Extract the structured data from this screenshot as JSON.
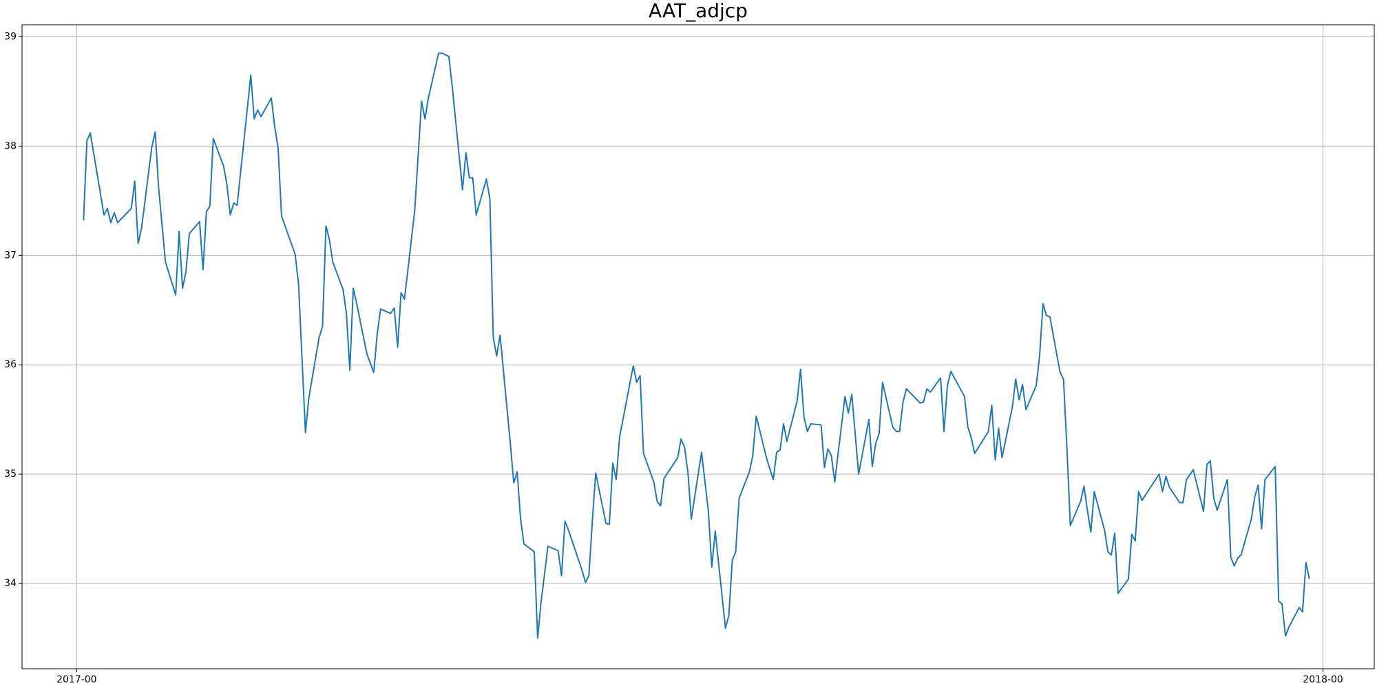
{
  "chart_data": {
    "type": "line",
    "title": "AAT_adjcp",
    "x": [
      2,
      3,
      4,
      8,
      9,
      10,
      11,
      12,
      16,
      17,
      18,
      19,
      22,
      23,
      24,
      26,
      29,
      30,
      31,
      32,
      33,
      36,
      37,
      38,
      39,
      40,
      43,
      44,
      45,
      46,
      47,
      51,
      52,
      53,
      54,
      57,
      58,
      59,
      60,
      64,
      65,
      67,
      68,
      71,
      72,
      73,
      74,
      75,
      78,
      79,
      80,
      81,
      82,
      85,
      87,
      88,
      89,
      92,
      93,
      94,
      95,
      96,
      99,
      101,
      102,
      103,
      106,
      107,
      109,
      110,
      113,
      114,
      115,
      116,
      117,
      120,
      121,
      122,
      123,
      124,
      127,
      128,
      129,
      130,
      131,
      134,
      135,
      136,
      137,
      138,
      141,
      142,
      143,
      144,
      148,
      149,
      150,
      151,
      152,
      155,
      156,
      157,
      158,
      159,
      163,
      164,
      165,
      166,
      169,
      170,
      171,
      172,
      176,
      177,
      178,
      179,
      180,
      183,
      185,
      186,
      187,
      190,
      191,
      192,
      193,
      194,
      197,
      198,
      199,
      202,
      204,
      205,
      206,
      207,
      208,
      211,
      212,
      213,
      214,
      215,
      218,
      219,
      220,
      221,
      222,
      225,
      226,
      227,
      229,
      232,
      233,
      234,
      235,
      236,
      239,
      240,
      241,
      242,
      243,
      247,
      248,
      249,
      250,
      253,
      254,
      255,
      256,
      260,
      261,
      262,
      263,
      267,
      268,
      269,
      270,
      271,
      274,
      275,
      276,
      277,
      278,
      281,
      282,
      283,
      284,
      285,
      288,
      289,
      290,
      291,
      294,
      295,
      296,
      297,
      298,
      301,
      302,
      303,
      304,
      305,
      308,
      309,
      310,
      311,
      312,
      317,
      318,
      319,
      320,
      323,
      324,
      325,
      327,
      330,
      331,
      332,
      333,
      334,
      337,
      338,
      339,
      340,
      341,
      344,
      345,
      346,
      347,
      348,
      351,
      352,
      353,
      354,
      355,
      358,
      359,
      360,
      361
    ],
    "series": [
      {
        "color": "#1f77b4",
        "values": [
          37.32,
          38.05,
          38.12,
          37.37,
          37.43,
          37.3,
          37.39,
          37.3,
          37.43,
          37.68,
          37.11,
          37.25,
          37.99,
          38.13,
          37.62,
          36.94,
          36.64,
          37.22,
          36.7,
          36.85,
          37.2,
          37.31,
          36.87,
          37.4,
          37.45,
          38.07,
          37.82,
          37.65,
          37.37,
          37.48,
          37.46,
          38.65,
          38.25,
          38.33,
          38.27,
          38.44,
          38.18,
          37.98,
          37.36,
          37.01,
          36.73,
          35.38,
          35.7,
          36.25,
          36.35,
          37.27,
          37.15,
          36.94,
          36.69,
          36.47,
          35.95,
          36.7,
          36.56,
          36.1,
          35.93,
          36.28,
          36.51,
          36.47,
          36.52,
          36.16,
          36.66,
          36.6,
          37.41,
          38.41,
          38.25,
          38.44,
          38.85,
          38.85,
          38.82,
          38.54,
          37.6,
          37.94,
          37.71,
          37.71,
          37.37,
          37.7,
          37.52,
          36.25,
          36.08,
          36.27,
          35.28,
          34.92,
          35.02,
          34.59,
          34.36,
          34.29,
          33.5,
          33.83,
          34.08,
          34.34,
          34.3,
          34.07,
          34.57,
          34.49,
          34.12,
          34.01,
          34.07,
          34.56,
          35.01,
          34.55,
          34.54,
          35.1,
          34.95,
          35.34,
          35.99,
          35.84,
          35.9,
          35.19,
          34.93,
          34.75,
          34.71,
          34.96,
          35.15,
          35.32,
          35.25,
          35.02,
          34.59,
          35.2,
          34.66,
          34.15,
          34.48,
          33.59,
          33.71,
          34.21,
          34.29,
          34.78,
          35.02,
          35.17,
          35.53,
          35.15,
          34.95,
          35.2,
          35.22,
          35.46,
          35.3,
          35.67,
          35.96,
          35.52,
          35.39,
          35.46,
          35.45,
          35.06,
          35.23,
          35.17,
          34.93,
          35.71,
          35.56,
          35.73,
          35.0,
          35.5,
          35.07,
          35.28,
          35.37,
          35.84,
          35.43,
          35.39,
          35.39,
          35.66,
          35.78,
          35.65,
          35.66,
          35.78,
          35.75,
          35.88,
          35.39,
          35.81,
          35.94,
          35.71,
          35.43,
          35.33,
          35.19,
          35.39,
          35.63,
          35.13,
          35.42,
          35.15,
          35.61,
          35.87,
          35.68,
          35.82,
          35.59,
          35.81,
          36.08,
          36.56,
          36.45,
          36.44,
          35.93,
          35.87,
          35.24,
          34.53,
          34.75,
          34.89,
          34.67,
          34.47,
          34.84,
          34.49,
          34.29,
          34.26,
          34.46,
          33.91,
          34.04,
          34.45,
          34.39,
          34.84,
          34.76,
          35.0,
          34.84,
          34.98,
          34.88,
          34.74,
          34.74,
          34.95,
          35.04,
          34.66,
          35.09,
          35.12,
          34.78,
          34.67,
          34.95,
          34.24,
          34.16,
          34.23,
          34.26,
          34.59,
          34.79,
          34.9,
          34.5,
          34.95,
          35.07,
          33.84,
          33.81,
          33.52,
          33.6,
          33.78,
          33.74,
          34.19,
          34.04
        ]
      }
    ],
    "xlim": [
      -16,
      380
    ],
    "xticks": [
      {
        "value": 0,
        "label": "2017-00"
      },
      {
        "value": 365,
        "label": "2018-00"
      }
    ],
    "ylim": [
      33.22,
      39.11
    ],
    "yticks": [
      34,
      35,
      36,
      37,
      38,
      39
    ],
    "grid": true
  }
}
